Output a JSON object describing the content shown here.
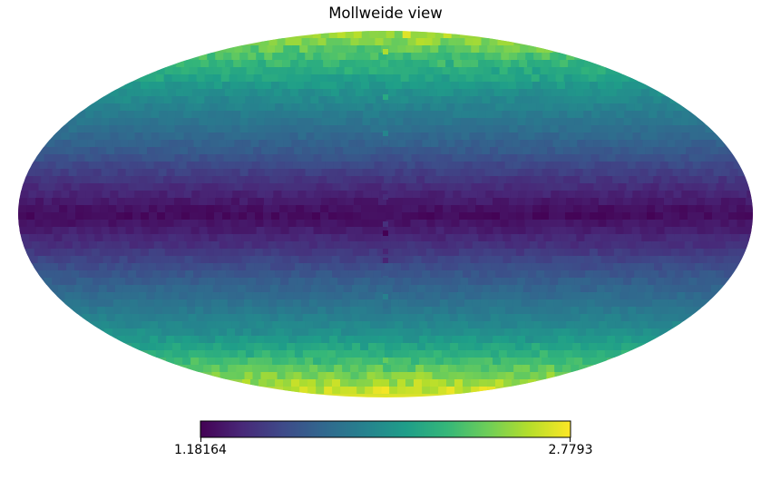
{
  "chart_data": {
    "type": "heatmap",
    "projection": "mollweide",
    "title": "Mollweide view",
    "colormap": "viridis",
    "colormap_stops": [
      "#440154",
      "#482878",
      "#3e4a89",
      "#31688e",
      "#26828e",
      "#1f9e89",
      "#35b779",
      "#6ece58",
      "#b5de2b",
      "#fde725"
    ],
    "colorbar": {
      "min": 1.18164,
      "max": 2.7793,
      "min_label": "1.18164",
      "max_label": "2.7793",
      "orientation": "horizontal"
    },
    "latitude_profile": {
      "lat_deg": [
        90,
        75,
        60,
        45,
        30,
        15,
        0,
        -15,
        -30,
        -45,
        -60,
        -75,
        -90
      ],
      "value": [
        2.6,
        2.25,
        1.98,
        1.8,
        1.62,
        1.4,
        1.22,
        1.4,
        1.62,
        1.8,
        2.0,
        2.35,
        2.72
      ]
    }
  }
}
